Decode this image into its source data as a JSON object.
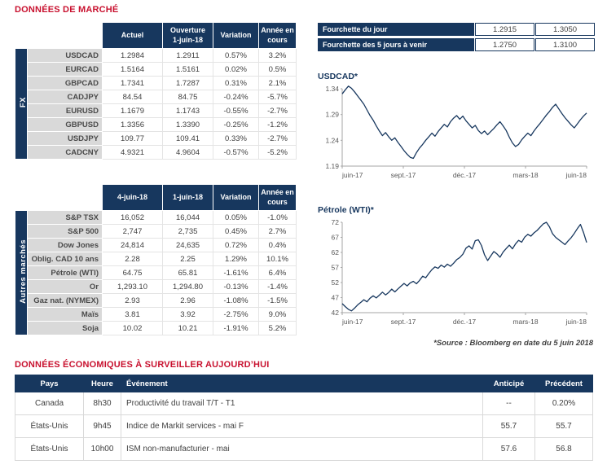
{
  "titles": {
    "market": "DONNÉES DE MARCHÉ",
    "econ": "DONNÉES ÉCONOMIQUES À SURVEILLER AUJOURD’HUI",
    "source": "*Source : Bloomberg en date du  5 juin 2018"
  },
  "fx": {
    "side": "FX",
    "headers": {
      "h1": "Actuel",
      "h2a": "Ouverture",
      "h2b": "1-juin-18",
      "h3": "Variation",
      "h4a": "Année en",
      "h4b": "cours"
    },
    "rows": [
      {
        "label": "USDCAD",
        "actual": "1.2984",
        "open": "1.2911",
        "chg": "0.57%",
        "ytd": "3.2%"
      },
      {
        "label": "EURCAD",
        "actual": "1.5164",
        "open": "1.5161",
        "chg": "0.02%",
        "ytd": "0.5%"
      },
      {
        "label": "GBPCAD",
        "actual": "1.7341",
        "open": "1.7287",
        "chg": "0.31%",
        "ytd": "2.1%"
      },
      {
        "label": "CADJPY",
        "actual": "84.54",
        "open": "84.75",
        "chg": "-0.24%",
        "ytd": "-5.7%"
      },
      {
        "label": "EURUSD",
        "actual": "1.1679",
        "open": "1.1743",
        "chg": "-0.55%",
        "ytd": "-2.7%"
      },
      {
        "label": "GBPUSD",
        "actual": "1.3356",
        "open": "1.3390",
        "chg": "-0.25%",
        "ytd": "-1.2%"
      },
      {
        "label": "USDJPY",
        "actual": "109.77",
        "open": "109.41",
        "chg": "0.33%",
        "ytd": "-2.7%"
      },
      {
        "label": "CADCNY",
        "actual": "4.9321",
        "open": "4.9604",
        "chg": "-0.57%",
        "ytd": "-5.2%"
      }
    ]
  },
  "markets": {
    "side": "Autres marchés",
    "headers": {
      "h1": "4-juin-18",
      "h2": "1-juin-18",
      "h3": "Variation",
      "h4a": "Année en",
      "h4b": "cours"
    },
    "rows": [
      {
        "label": "S&P TSX",
        "v1": "16,052",
        "v2": "16,044",
        "chg": "0.05%",
        "ytd": "-1.0%"
      },
      {
        "label": "S&P 500",
        "v1": "2,747",
        "v2": "2,735",
        "chg": "0.45%",
        "ytd": "2.7%"
      },
      {
        "label": "Dow Jones",
        "v1": "24,814",
        "v2": "24,635",
        "chg": "0.72%",
        "ytd": "0.4%"
      },
      {
        "label": "Oblig. CAD 10 ans",
        "v1": "2.28",
        "v2": "2.25",
        "chg": "1.29%",
        "ytd": "10.1%"
      },
      {
        "label": "Pétrole (WTI)",
        "v1": "64.75",
        "v2": "65.81",
        "chg": "-1.61%",
        "ytd": "6.4%"
      },
      {
        "label": "Or",
        "v1": "1,293.10",
        "v2": "1,294.80",
        "chg": "-0.13%",
        "ytd": "-1.4%"
      },
      {
        "label": "Gaz nat. (NYMEX)",
        "v1": "2.93",
        "v2": "2.96",
        "chg": "-1.08%",
        "ytd": "-1.5%"
      },
      {
        "label": "Maïs",
        "v1": "3.81",
        "v2": "3.92",
        "chg": "-2.75%",
        "ytd": "9.0%"
      },
      {
        "label": "Soja",
        "v1": "10.02",
        "v2": "10.21",
        "chg": "-1.91%",
        "ytd": "5.2%"
      }
    ]
  },
  "ranges": [
    {
      "label": "Fourchette du jour",
      "low": "1.2915",
      "high": "1.3050"
    },
    {
      "label": "Fourchette des 5 jours à venir",
      "low": "1.2750",
      "high": "1.3100"
    }
  ],
  "chart_data": [
    {
      "type": "line",
      "title": "USDCAD*",
      "x_tick_labels": [
        "juin-17",
        "sept.-17",
        "déc.-17",
        "mars-18",
        "juin-18"
      ],
      "ylim": [
        1.19,
        1.34
      ],
      "yticks": [
        1.19,
        1.24,
        1.29,
        1.34
      ],
      "line_color": "#17375E",
      "values": [
        1.33,
        1.338,
        1.345,
        1.341,
        1.334,
        1.326,
        1.318,
        1.31,
        1.299,
        1.288,
        1.279,
        1.268,
        1.258,
        1.249,
        1.255,
        1.247,
        1.24,
        1.245,
        1.236,
        1.228,
        1.22,
        1.213,
        1.207,
        1.205,
        1.216,
        1.225,
        1.232,
        1.24,
        1.247,
        1.254,
        1.248,
        1.257,
        1.264,
        1.271,
        1.266,
        1.276,
        1.283,
        1.288,
        1.281,
        1.287,
        1.278,
        1.271,
        1.264,
        1.269,
        1.259,
        1.253,
        1.258,
        1.251,
        1.257,
        1.263,
        1.27,
        1.276,
        1.268,
        1.259,
        1.246,
        1.235,
        1.228,
        1.232,
        1.241,
        1.248,
        1.254,
        1.249,
        1.258,
        1.266,
        1.273,
        1.281,
        1.289,
        1.296,
        1.304,
        1.31,
        1.301,
        1.292,
        1.284,
        1.277,
        1.27,
        1.264,
        1.272,
        1.28,
        1.287,
        1.293
      ]
    },
    {
      "type": "line",
      "title": "Pétrole (WTI)*",
      "x_tick_labels": [
        "juin-17",
        "sept.-17",
        "déc.-17",
        "mars-18",
        "juin-18"
      ],
      "ylim": [
        42,
        72
      ],
      "yticks": [
        42,
        47,
        52,
        57,
        62,
        67,
        72
      ],
      "line_color": "#17375E",
      "values": [
        45.0,
        44.0,
        43.1,
        42.6,
        43.5,
        44.6,
        45.4,
        46.3,
        45.6,
        46.8,
        47.6,
        46.9,
        47.8,
        48.8,
        47.9,
        48.7,
        49.8,
        48.9,
        49.9,
        50.8,
        51.7,
        50.9,
        51.9,
        52.4,
        51.6,
        52.7,
        54.1,
        53.6,
        55.0,
        56.3,
        57.2,
        56.7,
        57.8,
        57.1,
        58.1,
        57.4,
        58.4,
        59.6,
        60.3,
        61.4,
        63.4,
        64.2,
        63.1,
        65.9,
        66.2,
        64.3,
        61.2,
        59.3,
        60.8,
        62.3,
        61.5,
        60.4,
        62.1,
        63.3,
        64.4,
        63.2,
        64.8,
        66.0,
        65.4,
        67.1,
        68.0,
        67.4,
        68.5,
        69.3,
        70.4,
        71.5,
        72.0,
        70.5,
        68.2,
        67.0,
        66.2,
        65.4,
        64.6,
        65.8,
        66.9,
        68.3,
        69.9,
        71.3,
        68.6,
        65.3
      ]
    }
  ],
  "econ": {
    "headers": [
      "Pays",
      "Heure",
      "Événement",
      "Anticipé",
      "Précédent"
    ],
    "rows": [
      {
        "country": "Canada",
        "time": "8h30",
        "event": "Productivité du travail T/T -  T1",
        "anticipated": "--",
        "previous": "0.20%"
      },
      {
        "country": "États-Unis",
        "time": "9h45",
        "event": "Indice de Markit services - mai F",
        "anticipated": "55.7",
        "previous": "55.7"
      },
      {
        "country": "États-Unis",
        "time": "10h00",
        "event": "ISM non-manufacturier - mai",
        "anticipated": "57.6",
        "previous": "56.8"
      }
    ]
  },
  "colors": {
    "navy": "#17375E",
    "title_red": "#C8102E",
    "positive": "#009B48",
    "negative": "#E0393E",
    "label_gray": "#D9D9D9"
  }
}
